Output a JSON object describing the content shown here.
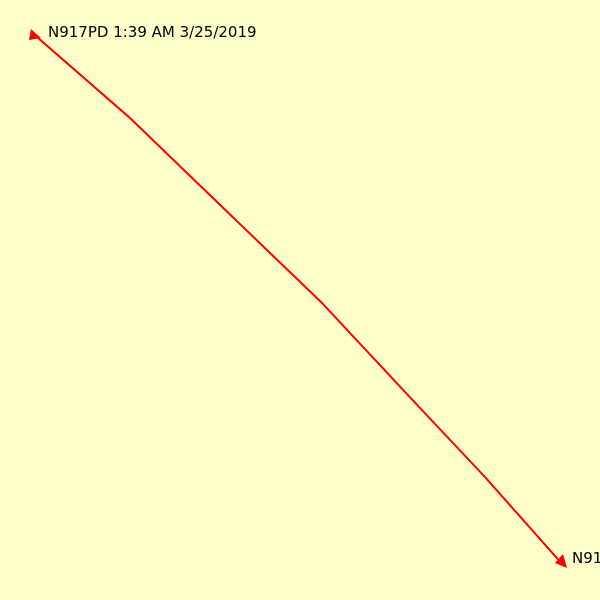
{
  "track": {
    "callsign": "N917PD",
    "start_label": "N917PD 1:39 AM 3/25/2019",
    "end_label_visible": "N91",
    "line_color": "#ff0000",
    "background_color": "#ffffcc"
  }
}
